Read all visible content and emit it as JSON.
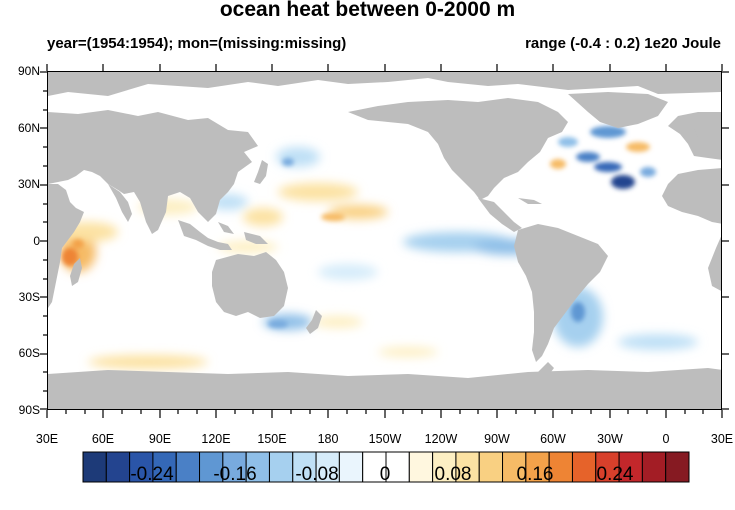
{
  "title": "ocean heat between 0-2000 m",
  "subtitle_left": "year=(1954:1954); mon=(missing:missing)",
  "subtitle_right": "range (-0.4 : 0.2) 1e20 Joule",
  "lat_labels": [
    "90N",
    "60N",
    "30N",
    "0",
    "30S",
    "60S",
    "90S"
  ],
  "lon_labels": [
    "30E",
    "60E",
    "90E",
    "120E",
    "150E",
    "180",
    "150W",
    "120W",
    "90W",
    "60W",
    "30W",
    "0",
    "30E"
  ],
  "colorbar": {
    "levels": [
      "-0.24",
      "-0.16",
      "-0.08",
      "0",
      "0.08",
      "0.16",
      "0.24"
    ],
    "colors": [
      "#1d3a78",
      "#23448f",
      "#2a55a8",
      "#3468b7",
      "#4a80c6",
      "#5f97d3",
      "#78aade",
      "#8fbfe8",
      "#a6d0ef",
      "#bfe0f6",
      "#d6ecfa",
      "#eaf5fd",
      "#ffffff",
      "#ffffff",
      "#fff7df",
      "#fdefc3",
      "#fce2a3",
      "#f9d082",
      "#f6bb66",
      "#f3a24a",
      "#ee8434",
      "#e6632a",
      "#d8402b",
      "#c3272b",
      "#a31d25",
      "#861a22"
    ]
  },
  "colors": {
    "land": "#bdbdbd",
    "warm": "#f3a24a",
    "cool": "#5f97d3"
  }
}
